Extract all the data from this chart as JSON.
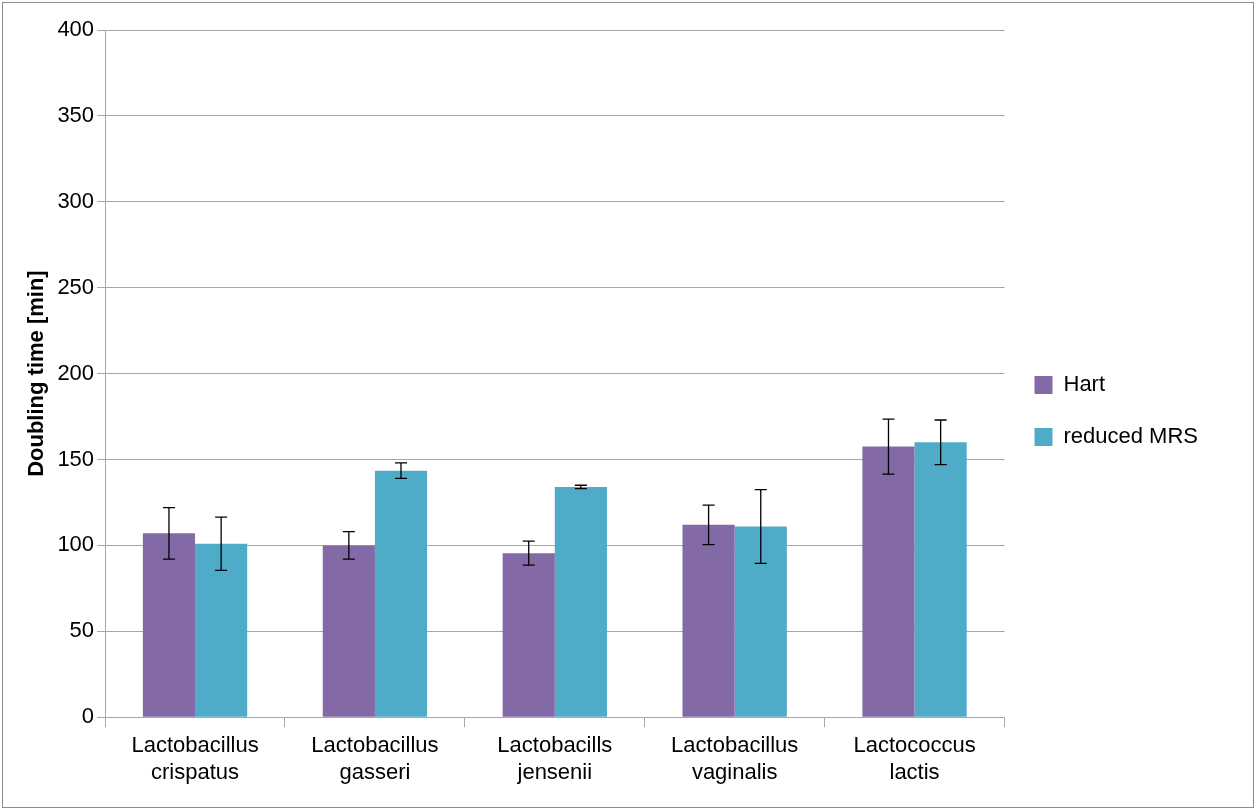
{
  "chart_data": {
    "type": "bar",
    "ylabel": "Doubling time [min]",
    "categories": [
      "Lactobacillus crispatus",
      "Lactobacillus gasseri",
      "Lactobacills jensenii",
      "Lactobacillus vaginalis",
      "Lactococcus lactis"
    ],
    "series": [
      {
        "name": "Hart",
        "color": "#8469a7",
        "values": [
          107,
          100,
          95.5,
          112,
          157.5
        ],
        "errors": [
          15,
          8,
          7,
          11.5,
          16
        ]
      },
      {
        "name": "reduced MRS",
        "color": "#4facc8",
        "values": [
          101,
          143.5,
          134,
          111,
          160
        ],
        "errors": [
          15.5,
          4.5,
          1,
          21.5,
          13
        ]
      }
    ],
    "ylim": [
      0,
      400
    ],
    "yticks": [
      0,
      50,
      100,
      150,
      200,
      250,
      300,
      350,
      400
    ],
    "grid": "y",
    "legend": "right"
  }
}
